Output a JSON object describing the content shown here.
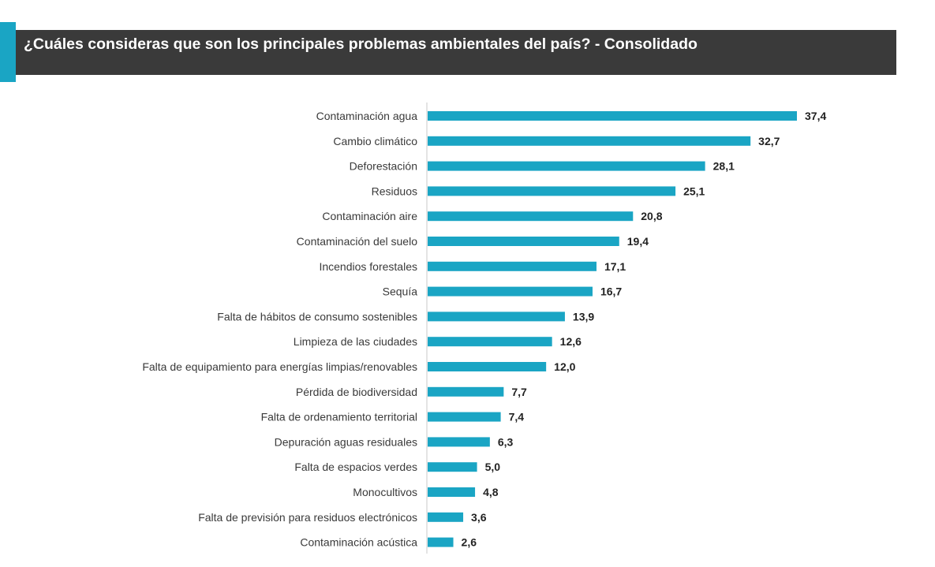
{
  "title": "¿Cuáles consideras que son los principales problemas ambientales del país? - Consolidado",
  "colors": {
    "bar": "#1aa5c4",
    "title_bar": "#3a3a3a",
    "accent": "#1aa5c4",
    "axis": "#c8c8c8"
  },
  "chart_data": {
    "type": "bar",
    "orientation": "horizontal",
    "title": "¿Cuáles consideras que son los principales problemas ambientales del país? - Consolidado",
    "xlabel": "",
    "ylabel": "",
    "grid": false,
    "legend": "none",
    "xlim": [
      0,
      37.4
    ],
    "categories": [
      "Contaminación agua",
      "Cambio climático",
      "Deforestación",
      "Residuos",
      "Contaminación aire",
      "Contaminación del suelo",
      "Incendios forestales",
      "Sequía",
      "Falta de hábitos de consumo sostenibles",
      "Limpieza de las ciudades",
      "Falta de equipamiento para energías limpias/renovables",
      "Pérdida de biodiversidad",
      "Falta de ordenamiento territorial",
      "Depuración aguas residuales",
      "Falta de espacios verdes",
      "Monocultivos",
      "Falta de previsión para residuos electrónicos",
      "Contaminación acústica"
    ],
    "values": [
      37.4,
      32.7,
      28.1,
      25.1,
      20.8,
      19.4,
      17.1,
      16.7,
      13.9,
      12.6,
      12.0,
      7.7,
      7.4,
      6.3,
      5.0,
      4.8,
      3.6,
      2.6
    ],
    "value_labels": [
      "37,4",
      "32,7",
      "28,1",
      "25,1",
      "20,8",
      "19,4",
      "17,1",
      "16,7",
      "13,9",
      "12,6",
      "12,0",
      "7,7",
      "7,4",
      "6,3",
      "5,0",
      "4,8",
      "3,6",
      "2,6"
    ]
  }
}
